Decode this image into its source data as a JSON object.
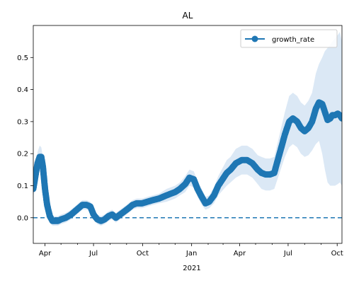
{
  "chart_data": {
    "type": "line",
    "title": "AL",
    "xlabel": "2021",
    "ylabel": "",
    "x_ticks": [
      "Apr",
      "Jul",
      "Oct",
      "Jan",
      "Apr",
      "Jul",
      "Oct"
    ],
    "x_tick_months": [
      3,
      6,
      9,
      12,
      15,
      18,
      21
    ],
    "y_ticks": [
      "0.0",
      "0.1",
      "0.2",
      "0.3",
      "0.4",
      "0.5"
    ],
    "y_tick_values": [
      0.0,
      0.1,
      0.2,
      0.3,
      0.4,
      0.5
    ],
    "xlim": [
      "2020-03-10",
      "2021-10-10"
    ],
    "ylim": [
      -0.08,
      0.6
    ],
    "grid": false,
    "legend": {
      "position": "top-right",
      "entries": [
        "growth_rate"
      ]
    },
    "reference_line": {
      "y": 0.0,
      "style": "dashed"
    },
    "colors": {
      "line": "#1f77b4",
      "band": "#dbe8f5"
    },
    "series": [
      {
        "name": "growth_rate",
        "x": [
          "2020-03-10",
          "2020-03-14",
          "2020-03-18",
          "2020-03-22",
          "2020-03-25",
          "2020-03-28",
          "2020-04-01",
          "2020-04-05",
          "2020-04-10",
          "2020-04-15",
          "2020-04-20",
          "2020-04-25",
          "2020-05-01",
          "2020-05-10",
          "2020-05-20",
          "2020-05-27",
          "2020-06-03",
          "2020-06-10",
          "2020-06-18",
          "2020-06-25",
          "2020-07-01",
          "2020-07-08",
          "2020-07-15",
          "2020-07-22",
          "2020-07-29",
          "2020-08-05",
          "2020-08-12",
          "2020-08-20",
          "2020-08-28",
          "2020-09-05",
          "2020-09-12",
          "2020-09-20",
          "2020-09-30",
          "2020-10-10",
          "2020-10-20",
          "2020-11-01",
          "2020-11-15",
          "2020-12-01",
          "2020-12-10",
          "2020-12-20",
          "2020-12-28",
          "2021-01-05",
          "2021-01-12",
          "2021-01-20",
          "2021-01-27",
          "2021-02-03",
          "2021-02-12",
          "2021-02-20",
          "2021-02-28",
          "2021-03-08",
          "2021-03-15",
          "2021-03-25",
          "2021-04-05",
          "2021-04-15",
          "2021-04-25",
          "2021-05-05",
          "2021-05-12",
          "2021-05-20",
          "2021-05-28",
          "2021-06-05",
          "2021-06-15",
          "2021-06-25",
          "2021-07-03",
          "2021-07-10",
          "2021-07-18",
          "2021-07-25",
          "2021-08-01",
          "2021-08-08",
          "2021-08-15",
          "2021-08-22",
          "2021-08-28",
          "2021-09-03",
          "2021-09-08",
          "2021-09-13",
          "2021-09-18",
          "2021-09-22",
          "2021-09-27",
          "2021-10-02",
          "2021-10-06",
          "2021-10-10"
        ],
        "y": [
          0.09,
          0.13,
          0.17,
          0.19,
          0.19,
          0.16,
          0.09,
          0.04,
          0.005,
          -0.01,
          -0.01,
          -0.01,
          -0.005,
          0.0,
          0.01,
          0.02,
          0.03,
          0.04,
          0.04,
          0.035,
          0.01,
          -0.005,
          -0.01,
          -0.005,
          0.005,
          0.01,
          0.0,
          0.01,
          0.02,
          0.03,
          0.04,
          0.045,
          0.045,
          0.05,
          0.055,
          0.06,
          0.07,
          0.08,
          0.09,
          0.105,
          0.125,
          0.12,
          0.09,
          0.065,
          0.045,
          0.05,
          0.07,
          0.1,
          0.12,
          0.14,
          0.15,
          0.17,
          0.18,
          0.18,
          0.17,
          0.15,
          0.14,
          0.135,
          0.135,
          0.14,
          0.2,
          0.26,
          0.3,
          0.31,
          0.3,
          0.28,
          0.27,
          0.28,
          0.3,
          0.34,
          0.36,
          0.355,
          0.33,
          0.305,
          0.31,
          0.32,
          0.32,
          0.325,
          0.32,
          0.31
        ],
        "lower": [
          0.065,
          0.1,
          0.135,
          0.155,
          0.16,
          0.13,
          0.07,
          0.025,
          -0.01,
          -0.025,
          -0.025,
          -0.025,
          -0.02,
          -0.015,
          -0.005,
          0.005,
          0.015,
          0.025,
          0.025,
          0.02,
          -0.005,
          -0.02,
          -0.025,
          -0.02,
          -0.01,
          -0.005,
          -0.015,
          -0.005,
          0.005,
          0.015,
          0.025,
          0.03,
          0.03,
          0.035,
          0.04,
          0.045,
          0.05,
          0.06,
          0.07,
          0.08,
          0.1,
          0.095,
          0.065,
          0.04,
          0.025,
          0.03,
          0.045,
          0.07,
          0.085,
          0.1,
          0.11,
          0.125,
          0.135,
          0.135,
          0.125,
          0.105,
          0.09,
          0.085,
          0.085,
          0.09,
          0.14,
          0.19,
          0.22,
          0.23,
          0.22,
          0.2,
          0.19,
          0.195,
          0.21,
          0.23,
          0.24,
          0.2,
          0.15,
          0.11,
          0.1,
          0.1,
          0.1,
          0.105,
          0.11,
          0.1
        ],
        "upper": [
          0.115,
          0.16,
          0.205,
          0.225,
          0.22,
          0.19,
          0.11,
          0.055,
          0.02,
          0.005,
          0.005,
          0.005,
          0.01,
          0.015,
          0.025,
          0.035,
          0.045,
          0.055,
          0.055,
          0.05,
          0.025,
          0.01,
          0.005,
          0.01,
          0.02,
          0.025,
          0.015,
          0.025,
          0.035,
          0.045,
          0.055,
          0.06,
          0.06,
          0.065,
          0.07,
          0.075,
          0.09,
          0.1,
          0.11,
          0.13,
          0.15,
          0.145,
          0.115,
          0.09,
          0.065,
          0.07,
          0.095,
          0.13,
          0.155,
          0.18,
          0.19,
          0.215,
          0.225,
          0.225,
          0.215,
          0.195,
          0.19,
          0.185,
          0.185,
          0.19,
          0.26,
          0.33,
          0.38,
          0.39,
          0.38,
          0.36,
          0.35,
          0.365,
          0.39,
          0.45,
          0.48,
          0.5,
          0.52,
          0.53,
          0.54,
          0.55,
          0.56,
          0.57,
          0.58,
          0.55
        ]
      }
    ]
  }
}
